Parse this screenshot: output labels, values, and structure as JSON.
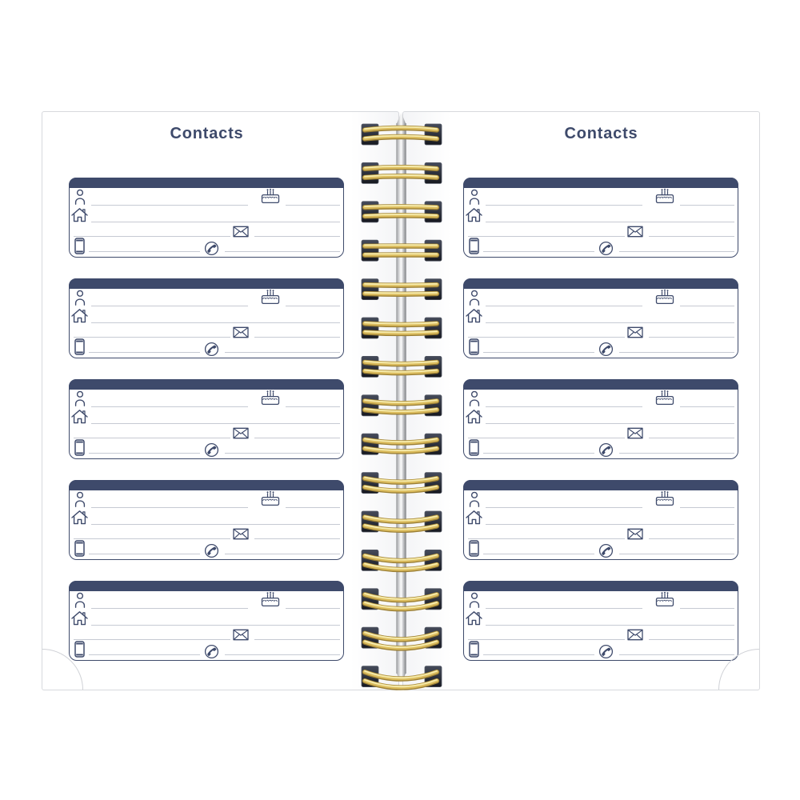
{
  "pages": [
    {
      "side": "left",
      "title": "Contacts",
      "card_count": 5
    },
    {
      "side": "right",
      "title": "Contacts",
      "card_count": 5
    }
  ],
  "card_template": {
    "writing_rows": 4,
    "line_segments": 7,
    "fields": [
      {
        "row": 1,
        "icon": "person-icon",
        "meaning": "name"
      },
      {
        "row": 1,
        "icon": "birthday-cake-icon",
        "meaning": "birthday"
      },
      {
        "row": 2,
        "icon": "home-icon",
        "meaning": "address"
      },
      {
        "row": 3,
        "icon": "envelope-icon",
        "meaning": "email"
      },
      {
        "row": 4,
        "icon": "mobile-phone-icon",
        "meaning": "mobile"
      },
      {
        "row": 4,
        "icon": "phone-receiver-icon",
        "meaning": "phone"
      }
    ]
  },
  "binding": {
    "style": "double-wire-o-spiral",
    "loop_count": 15
  },
  "colors": {
    "navy": "#3e4a6b",
    "line_gray": "#c6cad3",
    "page_border": "#d7d9dd",
    "background": "#ffffff",
    "wire_gold": "#dcbd5f",
    "wire_gold_dark": "#9b7f35",
    "wire_gold_light": "#f6ecae",
    "hole_dark": "#16181f",
    "rod_silver": "#d9dadc"
  }
}
